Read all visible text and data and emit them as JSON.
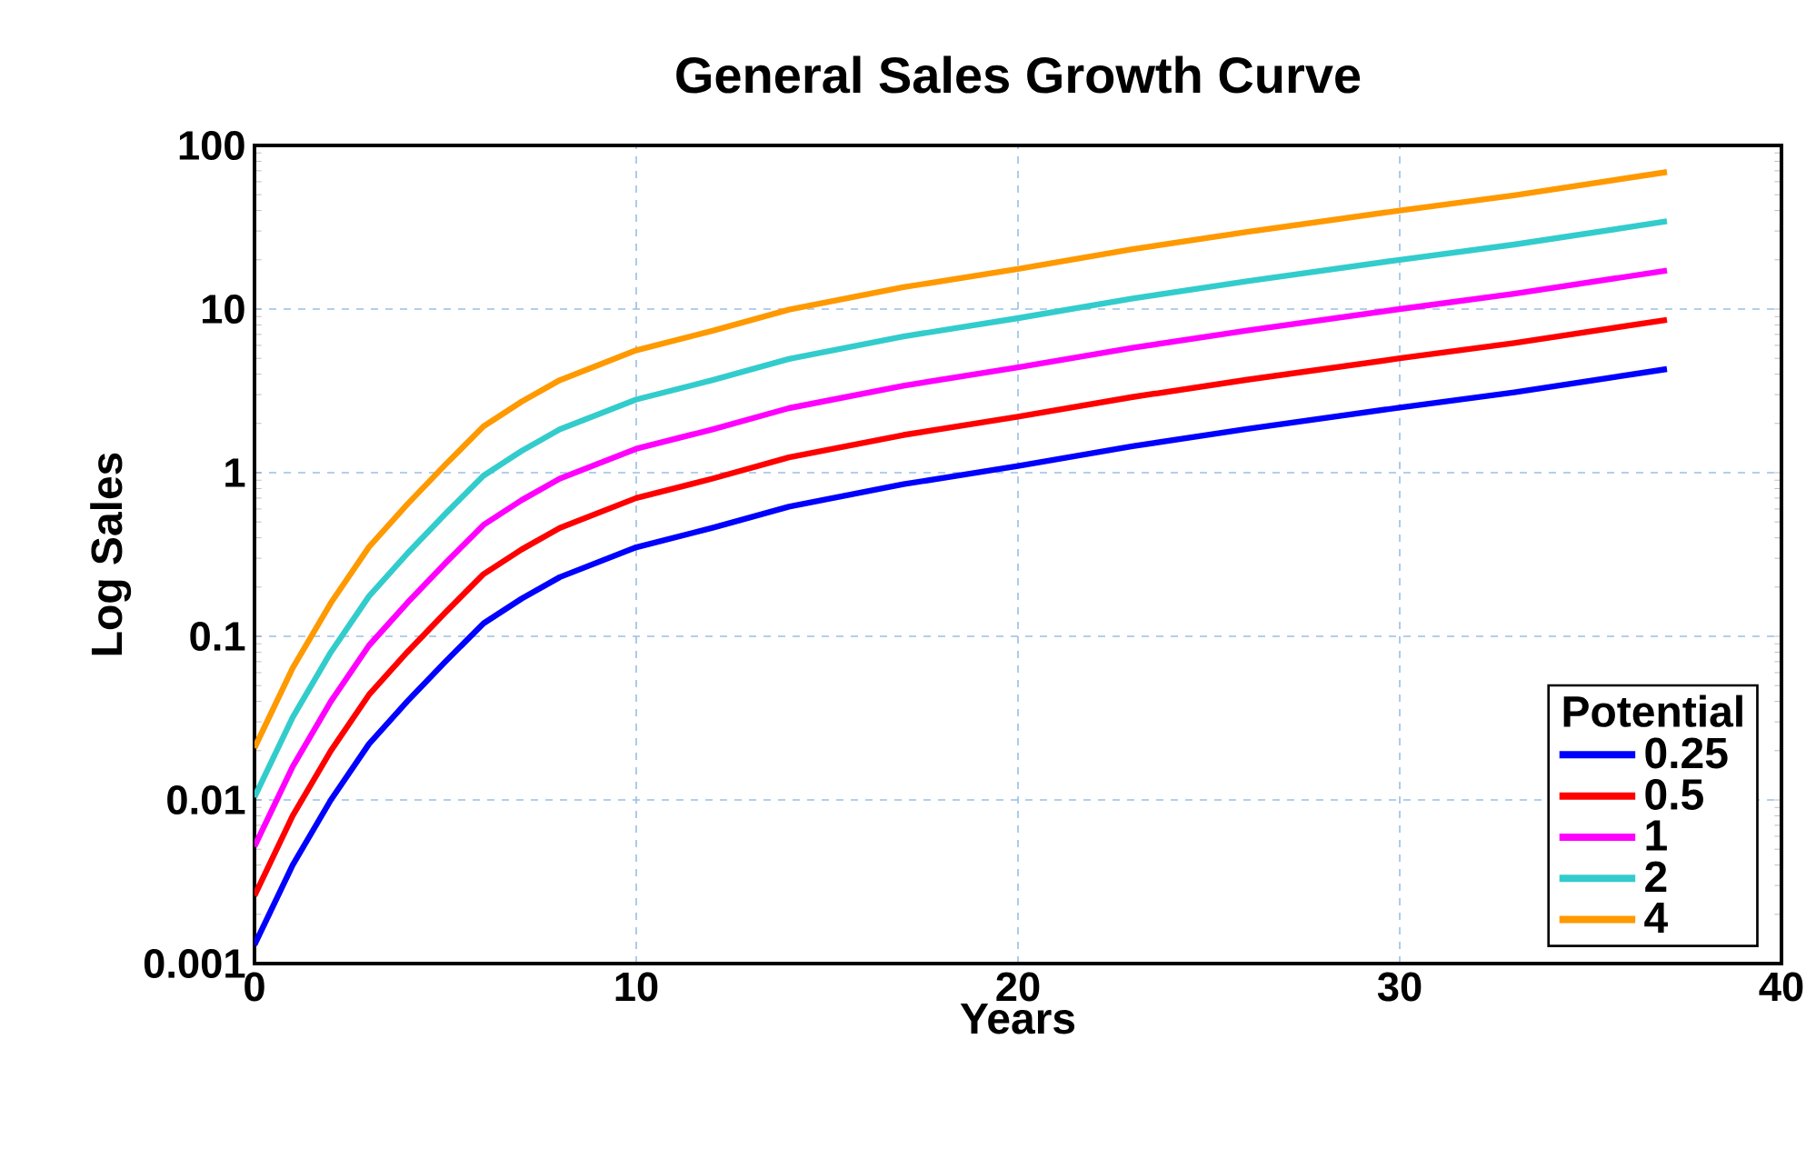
{
  "chart_data": {
    "type": "line",
    "title": "General Sales Growth Curve",
    "xlabel": "Years",
    "ylabel": "Log Sales",
    "legend_title": "Potential",
    "x": [
      0,
      1,
      2,
      3,
      4,
      5,
      6,
      7,
      8,
      10,
      12,
      14,
      17,
      20,
      23,
      26,
      30,
      33,
      37
    ],
    "series": [
      {
        "name": "0.25",
        "color": "#0000ff",
        "values": [
          0.0013,
          0.004,
          0.01,
          0.022,
          0.04,
          0.07,
          0.12,
          0.17,
          0.23,
          0.35,
          0.46,
          0.62,
          0.85,
          1.1,
          1.45,
          1.85,
          2.5,
          3.1,
          4.3
        ]
      },
      {
        "name": "0.5",
        "color": "#ff0000",
        "values": [
          0.0026,
          0.008,
          0.02,
          0.044,
          0.08,
          0.14,
          0.24,
          0.34,
          0.46,
          0.7,
          0.92,
          1.24,
          1.7,
          2.2,
          2.9,
          3.7,
          5,
          6.2,
          8.6
        ]
      },
      {
        "name": "1",
        "color": "#ff00ff",
        "values": [
          0.0052,
          0.016,
          0.04,
          0.088,
          0.16,
          0.28,
          0.48,
          0.68,
          0.92,
          1.4,
          1.84,
          2.48,
          3.4,
          4.4,
          5.8,
          7.4,
          10,
          12.4,
          17.2
        ]
      },
      {
        "name": "2",
        "color": "#33cccc",
        "values": [
          0.0104,
          0.032,
          0.08,
          0.176,
          0.32,
          0.56,
          0.96,
          1.36,
          1.84,
          2.8,
          3.68,
          4.96,
          6.8,
          8.8,
          11.6,
          14.8,
          20,
          24.8,
          34.4
        ]
      },
      {
        "name": "4",
        "color": "#ff9900",
        "values": [
          0.0208,
          0.064,
          0.16,
          0.352,
          0.64,
          1.12,
          1.92,
          2.72,
          3.68,
          5.6,
          7.36,
          9.92,
          13.6,
          17.6,
          23.2,
          29.6,
          40,
          49.6,
          68.8
        ]
      }
    ],
    "xlim": [
      0,
      40
    ],
    "xticks": [
      0,
      10,
      20,
      30,
      40
    ],
    "ylim": [
      0.001,
      100
    ],
    "yticks": [
      0.001,
      0.01,
      0.1,
      1,
      10,
      100
    ],
    "log": "y",
    "grid": true,
    "legend": "bottom right",
    "marker": "none",
    "line_style": "solid"
  }
}
